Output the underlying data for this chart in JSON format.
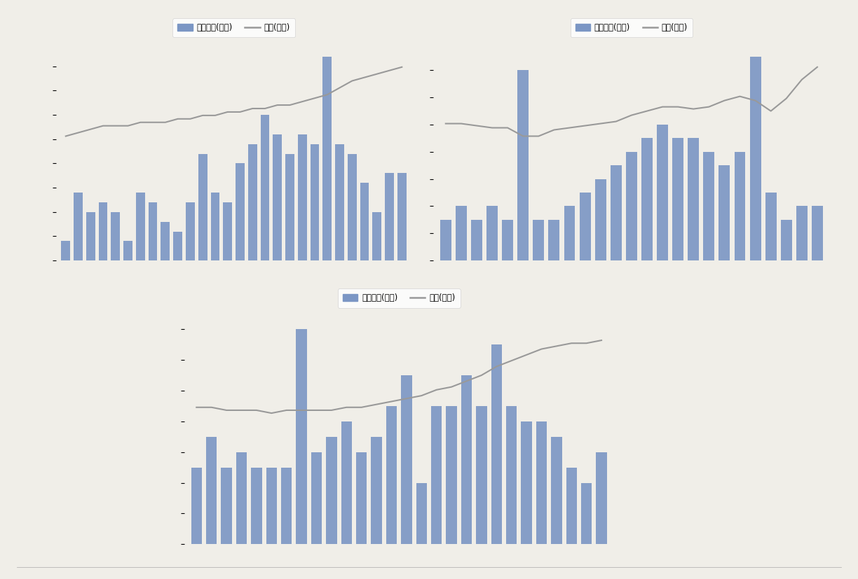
{
  "bar_color": "#7B96C4",
  "line_color": "#999999",
  "legend_bar_label": "销售面积(左轴)",
  "legend_line_label": "价格(右轴)",
  "background_color": "#F0EEE8",
  "chart_bg": "#F0EEE8",
  "chart1": {
    "bars": [
      2,
      7,
      5,
      6,
      5,
      2,
      7,
      6,
      4,
      3,
      6,
      11,
      7,
      6,
      10,
      12,
      15,
      13,
      11,
      13,
      12,
      21,
      12,
      11,
      8,
      5,
      9,
      9
    ],
    "line": [
      43,
      44,
      45,
      46,
      46,
      46,
      47,
      47,
      47,
      48,
      48,
      49,
      49,
      50,
      50,
      51,
      51,
      52,
      52,
      53,
      54,
      55,
      57,
      59,
      60,
      61,
      62,
      63
    ]
  },
  "chart2": {
    "bars": [
      3,
      4,
      3,
      4,
      3,
      14,
      3,
      3,
      4,
      5,
      6,
      7,
      8,
      9,
      10,
      9,
      9,
      8,
      7,
      8,
      15,
      5,
      3,
      4,
      4
    ],
    "line": [
      50,
      50,
      49,
      48,
      48,
      44,
      44,
      47,
      48,
      49,
      50,
      51,
      54,
      56,
      58,
      58,
      57,
      58,
      61,
      63,
      61,
      56,
      62,
      71,
      77
    ]
  },
  "chart3": {
    "bars": [
      5,
      7,
      5,
      6,
      5,
      5,
      5,
      14,
      6,
      7,
      8,
      6,
      7,
      9,
      11,
      4,
      9,
      9,
      11,
      9,
      13,
      9,
      8,
      8,
      7,
      5,
      4,
      6
    ],
    "line": [
      38,
      38,
      37,
      37,
      37,
      36,
      37,
      37,
      37,
      37,
      38,
      38,
      39,
      40,
      41,
      42,
      44,
      45,
      47,
      49,
      52,
      54,
      56,
      58,
      59,
      60,
      60,
      61
    ]
  }
}
